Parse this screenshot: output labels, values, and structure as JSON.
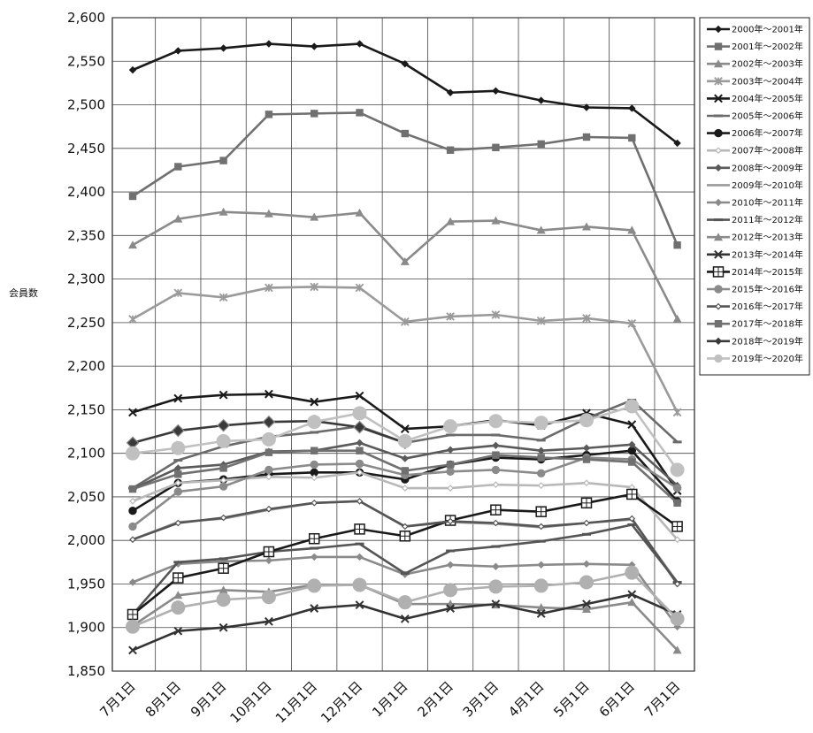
{
  "chart_data": {
    "type": "line",
    "title": "",
    "xlabel": "",
    "ylabel": "会員数",
    "ylim": [
      1850,
      2600
    ],
    "yticks": [
      "1,850",
      "1,900",
      "1,950",
      "2,000",
      "2,050",
      "2,100",
      "2,150",
      "2,200",
      "2,250",
      "2,300",
      "2,350",
      "2,400",
      "2,450",
      "2,500",
      "2,550",
      "2,600"
    ],
    "grid": true,
    "legend_position": "right",
    "categories": [
      "7月1日",
      "8月1日",
      "9月1日",
      "10月1日",
      "11月1日",
      "12月1日",
      "1月1日",
      "2月1日",
      "3月1日",
      "4月1日",
      "5月1日",
      "6月1日",
      "7月1日"
    ],
    "series": [
      {
        "name": "2000年～2001年",
        "color": "#1a1a1a",
        "marker": "diamond",
        "values": [
          2540,
          2562,
          2565,
          2570,
          2567,
          2570,
          2547,
          2514,
          2516,
          2505,
          2497,
          2496,
          2456
        ]
      },
      {
        "name": "2001年～2002年",
        "color": "#707070",
        "marker": "square",
        "values": [
          2395,
          2429,
          2436,
          2489,
          2490,
          2491,
          2467,
          2448,
          2451,
          2455,
          2463,
          2462,
          2339
        ]
      },
      {
        "name": "2002年～2003年",
        "color": "#8a8a8a",
        "marker": "triangle",
        "values": [
          2339,
          2369,
          2377,
          2375,
          2371,
          2376,
          2320,
          2366,
          2367,
          2356,
          2360,
          2356,
          2254
        ]
      },
      {
        "name": "2003年～2004年",
        "color": "#9a9a9a",
        "marker": "asterisk",
        "values": [
          2254,
          2284,
          2279,
          2290,
          2291,
          2290,
          2251,
          2257,
          2259,
          2252,
          2255,
          2249,
          2147
        ]
      },
      {
        "name": "2004年～2005年",
        "color": "#1a1a1a",
        "marker": "x",
        "values": [
          2147,
          2163,
          2167,
          2168,
          2159,
          2166,
          2128,
          2131,
          2138,
          2132,
          2146,
          2133,
          2057
        ]
      },
      {
        "name": "2005年～2006年",
        "color": "#6a6a6a",
        "marker": "dash",
        "values": [
          2060,
          2092,
          2108,
          2119,
          2124,
          2131,
          2112,
          2121,
          2121,
          2115,
          2140,
          2161,
          2113
        ]
      },
      {
        "name": "2006年～2007年",
        "color": "#1a1a1a",
        "marker": "circle",
        "values": [
          2034,
          2066,
          2070,
          2076,
          2078,
          2078,
          2070,
          2087,
          2095,
          2093,
          2098,
          2103,
          2045
        ]
      },
      {
        "name": "2007年～2008年",
        "color": "#b8b8b8",
        "marker": "smalldiamond",
        "values": [
          2045,
          2066,
          2069,
          2073,
          2072,
          2078,
          2060,
          2060,
          2064,
          2063,
          2066,
          2061,
          2001
        ]
      },
      {
        "name": "2008年～2009年",
        "color": "#5a5a5a",
        "marker": "diamond",
        "values": [
          2059,
          2083,
          2087,
          2102,
          2103,
          2112,
          2094,
          2104,
          2109,
          2103,
          2106,
          2110,
          2063
        ]
      },
      {
        "name": "2009年～2010年",
        "color": "#9a9a9a",
        "marker": "none",
        "values": [
          2001,
          2021,
          2025,
          2035,
          2043,
          2045,
          2016,
          2021,
          2019,
          2015,
          2020,
          2024,
          1952
        ]
      },
      {
        "name": "2010年～2011年",
        "color": "#8a8a8a",
        "marker": "diamond",
        "values": [
          1952,
          1973,
          1976,
          1977,
          1981,
          1981,
          1961,
          1972,
          1970,
          1972,
          1973,
          1972,
          1901
        ]
      },
      {
        "name": "2011年～2012年",
        "color": "#555555",
        "marker": "dash",
        "values": [
          1915,
          1975,
          1979,
          1987,
          1991,
          1996,
          1962,
          1988,
          1993,
          1999,
          2007,
          2018,
          1952
        ]
      },
      {
        "name": "2012年～2013年",
        "color": "#8a8a8a",
        "marker": "triangle",
        "values": [
          1902,
          1937,
          1943,
          1941,
          1949,
          1949,
          1927,
          1927,
          1926,
          1923,
          1921,
          1929,
          1874
        ]
      },
      {
        "name": "2013年～2014年",
        "color": "#333333",
        "marker": "x",
        "values": [
          1874,
          1896,
          1900,
          1907,
          1922,
          1926,
          1910,
          1922,
          1927,
          1916,
          1927,
          1938,
          1915
        ]
      },
      {
        "name": "2014年～2015年",
        "color": "#1a1a1a",
        "marker": "boxgrid",
        "values": [
          1915,
          1957,
          1968,
          1987,
          2002,
          2013,
          2005,
          2023,
          2035,
          2033,
          2043,
          2053,
          2016
        ]
      },
      {
        "name": "2015年～2016年",
        "color": "#8a8a8a",
        "marker": "circle",
        "values": [
          2016,
          2056,
          2062,
          2081,
          2087,
          2088,
          2075,
          2079,
          2081,
          2077,
          2095,
          2093,
          2060
        ]
      },
      {
        "name": "2016年～2017年",
        "color": "#555555",
        "marker": "smalldiamond",
        "values": [
          2001,
          2020,
          2026,
          2036,
          2043,
          2045,
          2016,
          2022,
          2020,
          2016,
          2020,
          2025,
          1950
        ]
      },
      {
        "name": "2017年～2018年",
        "color": "#707070",
        "marker": "square",
        "values": [
          2059,
          2076,
          2083,
          2101,
          2103,
          2103,
          2080,
          2087,
          2098,
          2095,
          2093,
          2090,
          2043
        ]
      },
      {
        "name": "2018年～2019年",
        "color": "#3a3a3a",
        "marker": "bigdiamond",
        "values": [
          2112,
          2126,
          2132,
          2136,
          2137,
          2130,
          2112,
          null,
          null,
          null,
          null,
          null,
          null
        ]
      },
      {
        "name": "2019年～2020年",
        "color": "#c0c0c0",
        "marker": "bigcircle",
        "values": [
          2100,
          2106,
          2114,
          2116,
          2136,
          2146,
          2114,
          2131,
          2137,
          2135,
          2138,
          2154,
          2081
        ]
      },
      {
        "name": "",
        "color": "#b0b0b0",
        "marker": "bigcircle",
        "values": [
          1901,
          1923,
          1932,
          1935,
          1948,
          1949,
          1929,
          1943,
          1947,
          1948,
          1952,
          1963,
          1910
        ]
      }
    ]
  }
}
